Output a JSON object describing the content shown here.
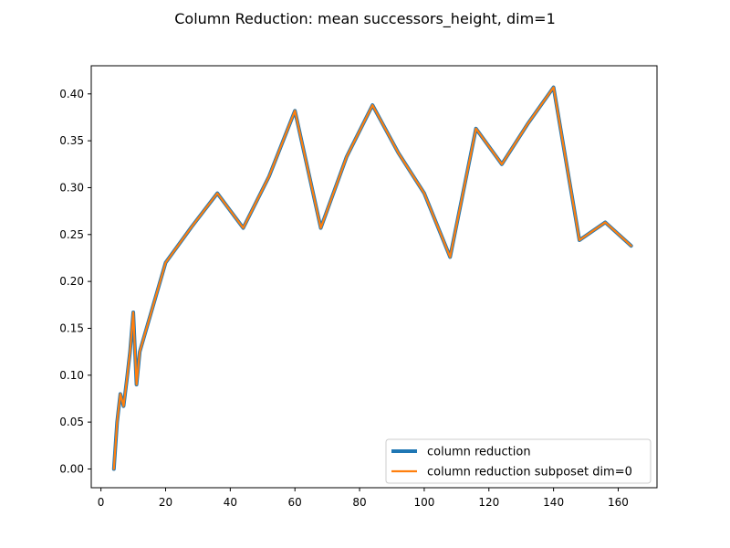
{
  "chart_data": {
    "type": "line",
    "title": "Column Reduction: mean successors_height, dim=1",
    "xlabel": "",
    "ylabel": "",
    "xlim": [
      -3.0,
      172.0
    ],
    "ylim": [
      -0.02,
      0.43
    ],
    "xticks": [
      0,
      20,
      40,
      60,
      80,
      100,
      120,
      140,
      160
    ],
    "xtick_labels": [
      "0",
      "20",
      "40",
      "60",
      "80",
      "100",
      "120",
      "140",
      "160"
    ],
    "yticks": [
      0.0,
      0.05,
      0.1,
      0.15,
      0.2,
      0.25,
      0.3,
      0.35,
      0.4
    ],
    "ytick_labels": [
      "0.00",
      "0.05",
      "0.10",
      "0.15",
      "0.20",
      "0.25",
      "0.30",
      "0.35",
      "0.40"
    ],
    "grid": false,
    "legend_position": "lower-right",
    "x": [
      4,
      5,
      6,
      7,
      8,
      9,
      10,
      11,
      12,
      20,
      28,
      36,
      44,
      52,
      60,
      68,
      76,
      84,
      92,
      100,
      108,
      116,
      124,
      132,
      140,
      148,
      156,
      164
    ],
    "series": [
      {
        "name": "column reduction",
        "color": "#1f77b4",
        "values": [
          0.0,
          0.05,
          0.08,
          0.067,
          0.095,
          0.125,
          0.167,
          0.09,
          0.125,
          0.22,
          0.258,
          0.294,
          0.257,
          0.312,
          0.382,
          0.257,
          0.333,
          0.388,
          0.337,
          0.294,
          0.226,
          0.363,
          0.325,
          0.368,
          0.407,
          0.244,
          0.263,
          0.238
        ]
      },
      {
        "name": "column reduction subposet dim=0",
        "color": "#ff7f0e",
        "values": [
          0.0,
          0.05,
          0.08,
          0.067,
          0.095,
          0.125,
          0.167,
          0.09,
          0.125,
          0.22,
          0.258,
          0.294,
          0.257,
          0.312,
          0.382,
          0.257,
          0.333,
          0.388,
          0.337,
          0.294,
          0.226,
          0.363,
          0.325,
          0.368,
          0.407,
          0.244,
          0.263,
          0.238
        ]
      }
    ]
  }
}
